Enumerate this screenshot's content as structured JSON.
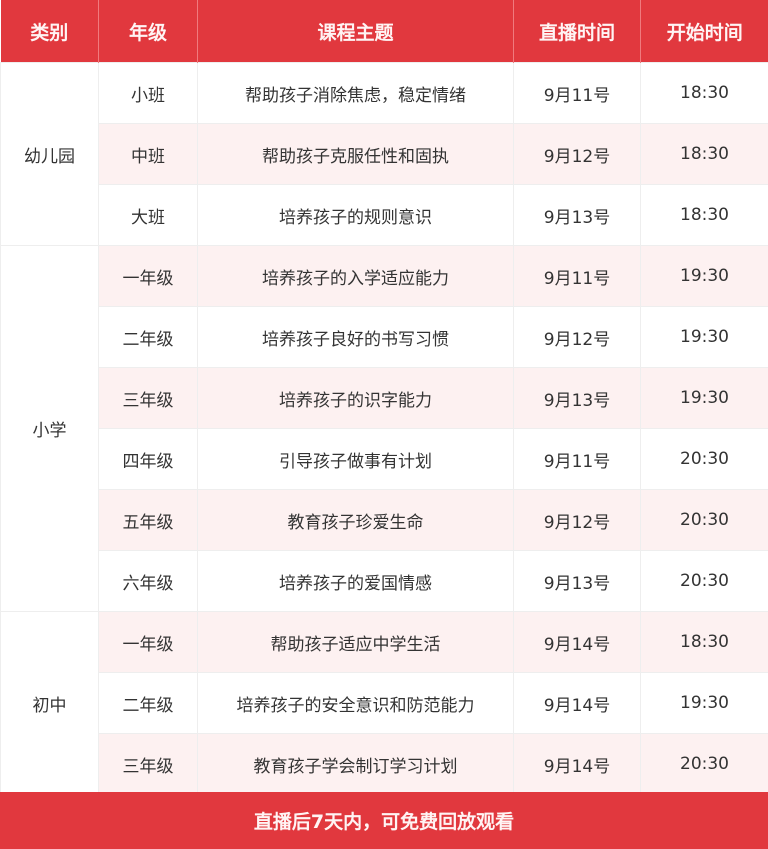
{
  "colors": {
    "header": "#e1383e",
    "row_alt": "#fdf1f1",
    "text": "#333333"
  },
  "headers": [
    "类别",
    "年级",
    "课程主题",
    "直播时间",
    "开始时间"
  ],
  "groups": [
    {
      "category": "幼儿园",
      "rows": [
        {
          "grade": "小班",
          "topic": "帮助孩子消除焦虑，稳定情绪",
          "date": "9月11号",
          "time": "18:30"
        },
        {
          "grade": "中班",
          "topic": "帮助孩子克服任性和固执",
          "date": "9月12号",
          "time": "18:30"
        },
        {
          "grade": "大班",
          "topic": "培养孩子的规则意识",
          "date": "9月13号",
          "time": "18:30"
        }
      ]
    },
    {
      "category": "小学",
      "rows": [
        {
          "grade": "一年级",
          "topic": "培养孩子的入学适应能力",
          "date": "9月11号",
          "time": "19:30"
        },
        {
          "grade": "二年级",
          "topic": "培养孩子良好的书写习惯",
          "date": "9月12号",
          "time": "19:30"
        },
        {
          "grade": "三年级",
          "topic": "培养孩子的识字能力",
          "date": "9月13号",
          "time": "19:30"
        },
        {
          "grade": "四年级",
          "topic": "引导孩子做事有计划",
          "date": "9月11号",
          "time": "20:30"
        },
        {
          "grade": "五年级",
          "topic": "教育孩子珍爱生命",
          "date": "9月12号",
          "time": "20:30"
        },
        {
          "grade": "六年级",
          "topic": "培养孩子的爱国情感",
          "date": "9月13号",
          "time": "20:30"
        }
      ]
    },
    {
      "category": "初中",
      "rows": [
        {
          "grade": "一年级",
          "topic": "帮助孩子适应中学生活",
          "date": "9月14号",
          "time": "18:30"
        },
        {
          "grade": "二年级",
          "topic": "培养孩子的安全意识和防范能力",
          "date": "9月14号",
          "time": "19:30"
        },
        {
          "grade": "三年级",
          "topic": "教育孩子学会制订学习计划",
          "date": "9月14号",
          "time": "20:30"
        }
      ]
    }
  ],
  "footer": "直播后7天内，可免费回放观看"
}
